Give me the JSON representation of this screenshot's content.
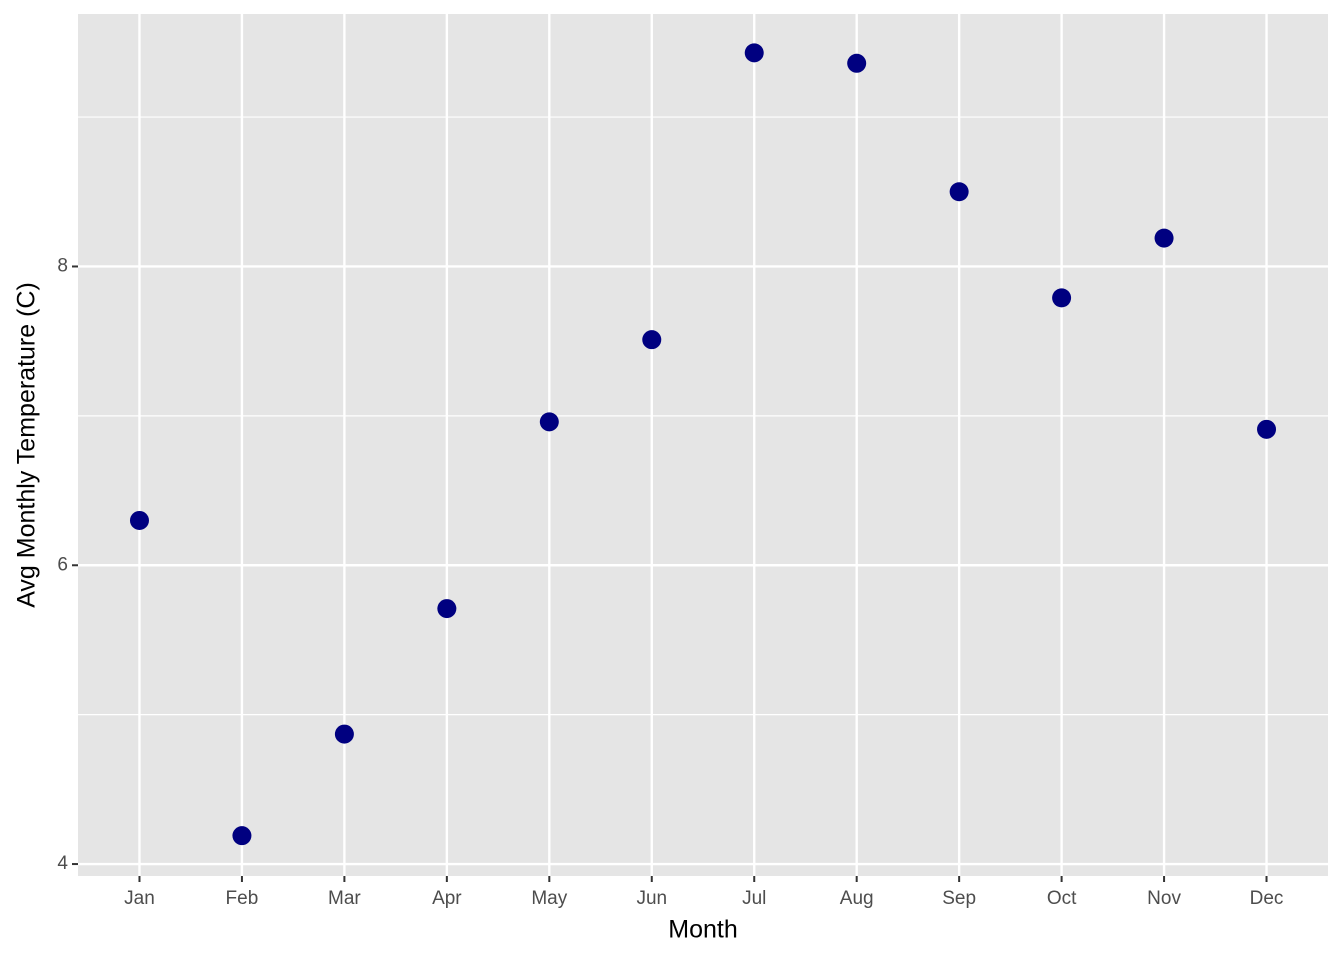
{
  "chart_data": {
    "type": "scatter",
    "x_label": "Month",
    "y_label": "Avg Monthly Temperature (C)",
    "categories": [
      "Jan",
      "Feb",
      "Mar",
      "Apr",
      "May",
      "Jun",
      "Jul",
      "Aug",
      "Sep",
      "Oct",
      "Nov",
      "Dec"
    ],
    "values": [
      6.3,
      4.19,
      4.87,
      5.71,
      6.96,
      7.51,
      9.43,
      9.36,
      8.5,
      7.79,
      8.19,
      6.91
    ],
    "color": "#000080",
    "ylim": [
      3.92,
      9.69
    ],
    "yticks": [
      4,
      6,
      8
    ],
    "yminorticks": [
      5,
      7,
      9
    ],
    "grid": true
  }
}
